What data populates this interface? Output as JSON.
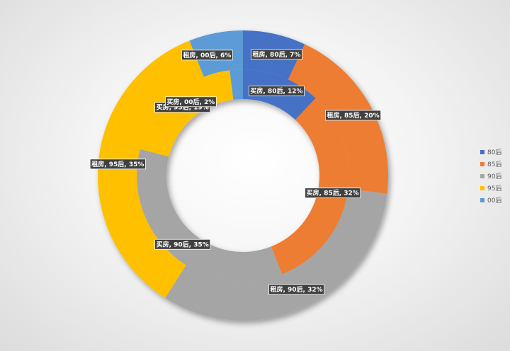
{
  "chart_data": {
    "type": "doughnut",
    "colors": {
      "80后": "#4472C4",
      "85后": "#ED7D31",
      "90后": "#A5A5A5",
      "95后": "#FFC000",
      "00后": "#5B9BD5"
    },
    "categories": [
      "80后",
      "85后",
      "90后",
      "95后",
      "00后"
    ],
    "series": [
      {
        "name": "买房",
        "ring": "inner",
        "values": [
          12,
          32,
          35,
          19,
          2
        ],
        "labels": [
          "买房, 80后, 12%",
          "买房, 85后, 32%",
          "买房, 90后, 35%",
          "买房, 95后, 19%",
          "买房, 00后, 2%"
        ]
      },
      {
        "name": "租房",
        "ring": "outer",
        "values": [
          7,
          20,
          32,
          35,
          6
        ],
        "labels": [
          "租房, 80后, 7%",
          "租房, 85后, 20%",
          "租房, 90后, 32%",
          "租房, 95后, 35%",
          "租房, 00后, 6%"
        ]
      }
    ],
    "legend": {
      "position": "right",
      "items": [
        "80后",
        "85后",
        "90后",
        "95后",
        "00后"
      ]
    }
  }
}
